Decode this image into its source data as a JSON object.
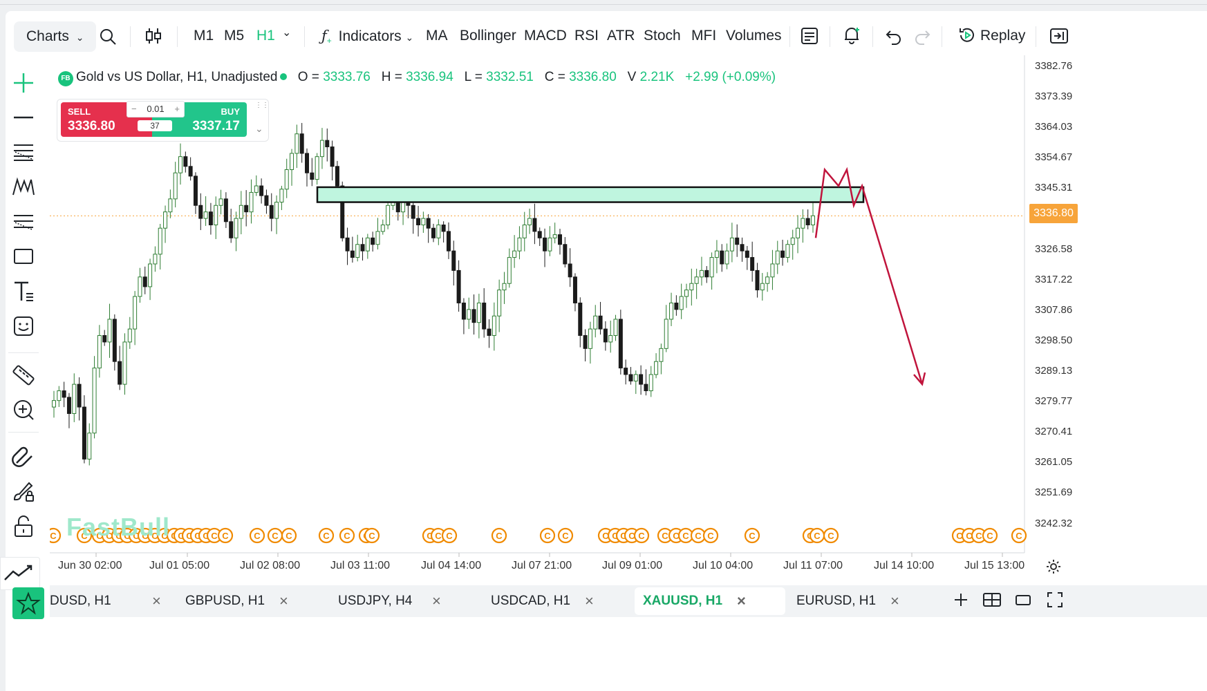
{
  "toolbar": {
    "charts_label": "Charts",
    "timeframes": [
      "M1",
      "M5",
      "H1"
    ],
    "active_timeframe": "H1",
    "indicators_label": "Indicators",
    "indicators": [
      "MA",
      "Bollinger",
      "MACD",
      "RSI",
      "ATR",
      "Stoch",
      "MFI",
      "Volumes"
    ],
    "replay_label": "Replay"
  },
  "legend": {
    "badge": "FB",
    "symbol_title": "Gold vs US Dollar, H1, Unadjusted",
    "open_label": "O =",
    "open": "3333.76",
    "high_label": "H =",
    "high": "3336.94",
    "low_label": "L =",
    "low": "3332.51",
    "close_label": "C =",
    "close": "3336.80",
    "vol_label": "V",
    "vol": "2.21K",
    "change": "+2.99 (+0.09%)"
  },
  "trade": {
    "sell_label": "SELL",
    "sell_price": "3336.80",
    "buy_label": "BUY",
    "buy_price": "3337.17",
    "qty_minus": "−",
    "qty": "0.01",
    "qty_plus": "+",
    "spread": "37"
  },
  "price_axis": {
    "labels": [
      "3382.76",
      "3373.39",
      "3364.03",
      "3354.67",
      "3345.31",
      "3326.58",
      "3317.22",
      "3307.86",
      "3298.50",
      "3289.13",
      "3279.77",
      "3270.41",
      "3261.05",
      "3251.69",
      "3242.32"
    ],
    "current_price": "3336.80"
  },
  "time_axis": {
    "labels": [
      "Jun 30 02:00",
      "Jul 01 05:00",
      "Jul 02 08:00",
      "Jul 03 11:00",
      "Jul 04 14:00",
      "Jul 07 21:00",
      "Jul 09 01:00",
      "Jul 10 04:00",
      "Jul 11 07:00",
      "Jul 14 10:00",
      "Jul 15 13:00"
    ]
  },
  "watermark": "FastBull",
  "event_marker_glyph": "C",
  "tabs": [
    {
      "label": "DUSD, H1",
      "close": "×"
    },
    {
      "label": "GBPUSD, H1",
      "close": "×"
    },
    {
      "label": "USDJPY, H4",
      "close": "×"
    },
    {
      "label": "USDCAD, H1",
      "close": "×"
    },
    {
      "label": "XAUUSD, H1",
      "close": "×"
    },
    {
      "label": "EURUSD, H1",
      "close": "×"
    }
  ],
  "selected_tab": "XAUUSD, H1",
  "colors": {
    "up": "#2e7d32",
    "down": "#1b1b1b",
    "accent": "#19c37d",
    "sell": "#e5304d",
    "buy": "#22c58b",
    "zone_fill": "#bff5df",
    "arrow": "#c0143c",
    "price_line": "#f7a43a",
    "event": "#f08a00"
  },
  "chart_data": {
    "type": "candlestick",
    "price_range": [
      3240,
      3387
    ],
    "current_price": 3336.8,
    "resistance_zone": {
      "from_price": 3341.0,
      "to_price": 3345.6,
      "from_time": "Jul 03 08:00",
      "to_time": "Jul 14 00:00"
    },
    "projection_path": [
      3330,
      3351,
      3346,
      3351,
      3340,
      3346,
      3285
    ],
    "closes": [
      3280,
      3283,
      3281,
      3276,
      3285,
      3278,
      3262,
      3270,
      3290,
      3300,
      3298,
      3305,
      3292,
      3285,
      3298,
      3302,
      3312,
      3318,
      3315,
      3322,
      3325,
      3333,
      3338,
      3342,
      3350,
      3355,
      3352,
      3349,
      3340,
      3336,
      3338,
      3334,
      3340,
      3342,
      3335,
      3330,
      3336,
      3340,
      3338,
      3344,
      3346,
      3343,
      3340,
      3336,
      3341,
      3345,
      3351,
      3356,
      3362,
      3356,
      3350,
      3348,
      3355,
      3360,
      3358,
      3352,
      3346,
      3330,
      3326,
      3324,
      3328,
      3326,
      3330,
      3328,
      3332,
      3334,
      3340,
      3342,
      3338,
      3342,
      3340,
      3336,
      3334,
      3336,
      3333,
      3330,
      3334,
      3332,
      3326,
      3320,
      3310,
      3305,
      3308,
      3304,
      3310,
      3302,
      3300,
      3306,
      3314,
      3316,
      3324,
      3326,
      3330,
      3334,
      3336,
      3332,
      3330,
      3326,
      3330,
      3331,
      3328,
      3322,
      3318,
      3310,
      3300,
      3296,
      3302,
      3306,
      3302,
      3298,
      3300,
      3305,
      3290,
      3288,
      3286,
      3288,
      3285,
      3283,
      3288,
      3292,
      3296,
      3305,
      3310,
      3308,
      3312,
      3314,
      3316,
      3318,
      3320,
      3318,
      3324,
      3326,
      3322,
      3326,
      3330,
      3328,
      3326,
      3324,
      3320,
      3314,
      3316,
      3318,
      3322,
      3326,
      3324,
      3328,
      3330,
      3333,
      3336,
      3334,
      3336.8
    ]
  }
}
